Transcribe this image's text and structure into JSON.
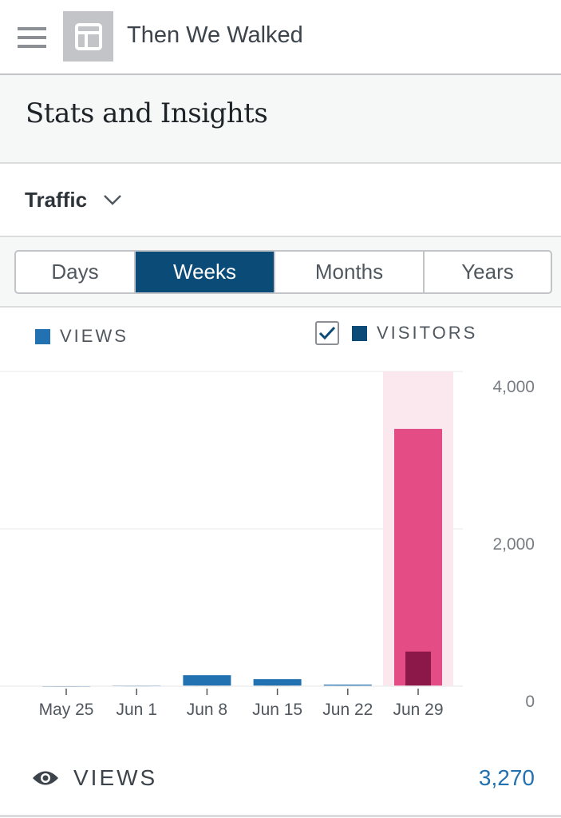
{
  "header": {
    "site_title": "Then We Walked",
    "menu_icon": "hamburger-icon",
    "site_icon": "layout-icon"
  },
  "page_title": "Stats and Insights",
  "section": {
    "label": "Traffic"
  },
  "tabs": [
    {
      "label": "Days"
    },
    {
      "label": "Weeks"
    },
    {
      "label": "Months"
    },
    {
      "label": "Years"
    }
  ],
  "active_tab": "Weeks",
  "legend": {
    "views": "VIEWS",
    "visitors": "VISITORS",
    "visitors_checked": true
  },
  "colors": {
    "views": "#2271b1",
    "visitors": "#0a4b78",
    "selected_views": "#e34c84",
    "selected_visitors": "#8c1749",
    "highlight": "#fbe8ef"
  },
  "chart_data": {
    "type": "bar",
    "categories": [
      "May 25",
      "Jun 1",
      "Jun 8",
      "Jun 15",
      "Jun 22",
      "Jun 29"
    ],
    "series": [
      {
        "name": "Views",
        "values": [
          5,
          10,
          140,
          90,
          20,
          3270
        ]
      },
      {
        "name": "Visitors",
        "values": [
          2,
          4,
          8,
          10,
          8,
          440
        ]
      }
    ],
    "ylim": [
      0,
      4000
    ],
    "yticks": [
      "0",
      "2,000",
      "4,000"
    ],
    "selected": "Jun 29",
    "grid": true
  },
  "summary": {
    "label": "VIEWS",
    "value": "3,270"
  }
}
